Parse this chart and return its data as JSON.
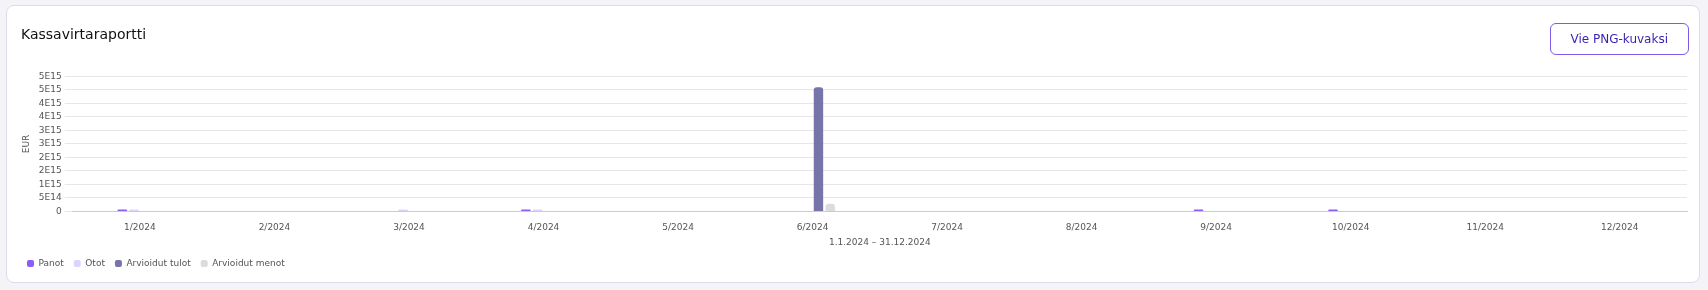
{
  "chart_data": {
    "type": "bar",
    "title": "Kassavirtaraportti",
    "xlabel": "1.1.2024 – 31.12.2024",
    "ylabel": "EUR",
    "annotations": [
      "Vie PNG-kuvaksi"
    ],
    "categories": [
      "1/2024",
      "2/2024",
      "3/2024",
      "4/2024",
      "5/2024",
      "6/2024",
      "7/2024",
      "8/2024",
      "9/2024",
      "10/2024",
      "11/2024",
      "12/2024"
    ],
    "series": [
      {
        "name": "Panot",
        "color": "#8b5cf6",
        "values": [
          10000000000000.0,
          null,
          null,
          10000000000000.0,
          null,
          null,
          null,
          null,
          10000000000000.0,
          10000000000000.0,
          null,
          null
        ]
      },
      {
        "name": "Otot",
        "color": "#ddd3fd",
        "values": [
          10000000000000.0,
          null,
          10000000000000.0,
          10000000000000.0,
          null,
          null,
          null,
          null,
          null,
          null,
          null,
          null
        ]
      },
      {
        "name": "Arvioidut tulot",
        "color": "#7774aa",
        "values": [
          null,
          null,
          null,
          null,
          null,
          4600000000000000.0,
          null,
          null,
          null,
          null,
          null,
          null
        ]
      },
      {
        "name": "Arvioidut menot",
        "color": "#dcdcdc",
        "values": [
          null,
          null,
          null,
          null,
          null,
          280000000000000.0,
          null,
          null,
          null,
          null,
          null,
          null
        ]
      }
    ],
    "ylim": [
      0,
      5000000000000000.0
    ],
    "yticks": [
      0,
      {
        "value": 500000000000000.0,
        "label": "5E14"
      },
      {
        "value": 1000000000000000.0,
        "label": "1E15"
      },
      {
        "value": 1500000000000000.0,
        "label": "2E15"
      },
      {
        "value": 2000000000000000.0,
        "label": "2E15"
      },
      {
        "value": 2500000000000000.0,
        "label": "3E15"
      },
      {
        "value": 3000000000000000.0,
        "label": "3E15"
      },
      {
        "value": 3500000000000000.0,
        "label": "4E15"
      },
      {
        "value": 4000000000000000.0,
        "label": "4E15"
      },
      {
        "value": 4500000000000000.0,
        "label": "5E15"
      },
      {
        "value": 5000000000000000.0,
        "label": "5E15"
      }
    ],
    "grid": "y",
    "legend": "bottom left"
  }
}
